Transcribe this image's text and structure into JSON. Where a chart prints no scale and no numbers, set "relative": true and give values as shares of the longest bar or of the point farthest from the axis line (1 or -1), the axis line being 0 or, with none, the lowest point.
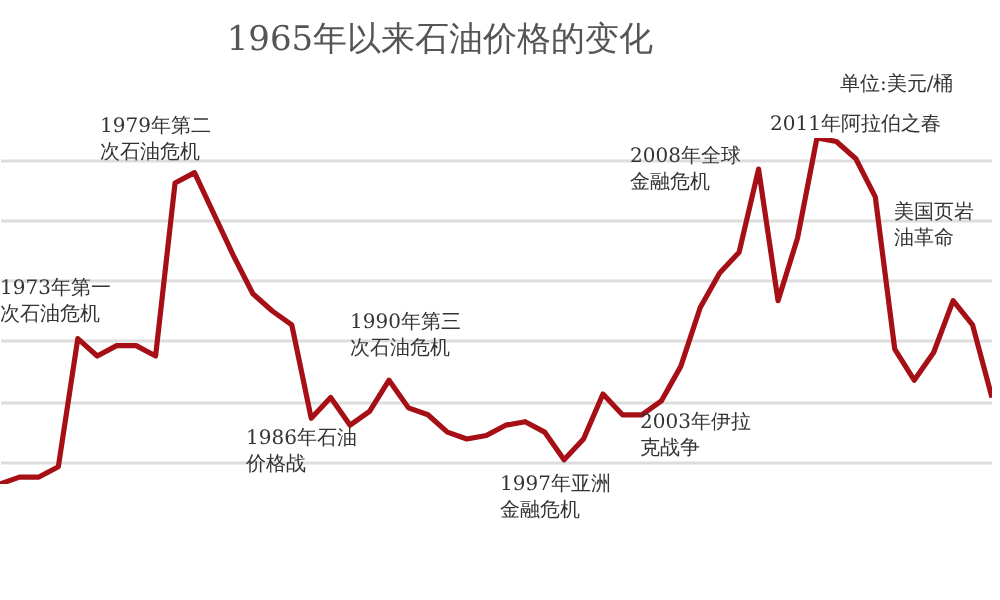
{
  "chart_data": {
    "type": "line",
    "title": "1965年以来石油价格的变化",
    "relative": true,
    "grid": "y",
    "categories": [
      null,
      null,
      null,
      null,
      null,
      null,
      null,
      null,
      null,
      null,
      null,
      null,
      null,
      null,
      null,
      null,
      null,
      null,
      null,
      null,
      null,
      null,
      null,
      null,
      null,
      null,
      null,
      null,
      null,
      null,
      null,
      null,
      null,
      null,
      null,
      null,
      null,
      null,
      null,
      null,
      null,
      null,
      null,
      null,
      null,
      null,
      null,
      null,
      null,
      null,
      null,
      null
    ],
    "series": [
      {
        "color": "#a50f15",
        "values": [
          0,
          0.02,
          0.02,
          0.05,
          0.42,
          0.37,
          0.4,
          0.4,
          0.37,
          0.87,
          0.9,
          0.78,
          0.66,
          0.55,
          0.5,
          0.46,
          0.19,
          0.25,
          0.17,
          0.21,
          0.3,
          0.22,
          0.2,
          0.15,
          0.13,
          0.14,
          0.17,
          0.18,
          0.15,
          0.07,
          0.13,
          0.26,
          0.2,
          0.2,
          0.24,
          0.34,
          0.51,
          0.61,
          0.67,
          0.91,
          0.53,
          0.71,
          1,
          0.99,
          0.94,
          0.83,
          0.39,
          0.3,
          0.38,
          0.53,
          0.46,
          0.25
        ]
      }
    ],
    "annotations": [
      "1973年第一次石油危机",
      "1979年第二次石油危机",
      "1986年石油价格战",
      "1990年第三次石油危机",
      "1997年亚洲金融危机",
      "2008年全球金融危机",
      "2003年伊拉克战争",
      "2011年阿拉伯之春",
      "美国页岩油革命",
      "单位:美元/桶"
    ]
  }
}
